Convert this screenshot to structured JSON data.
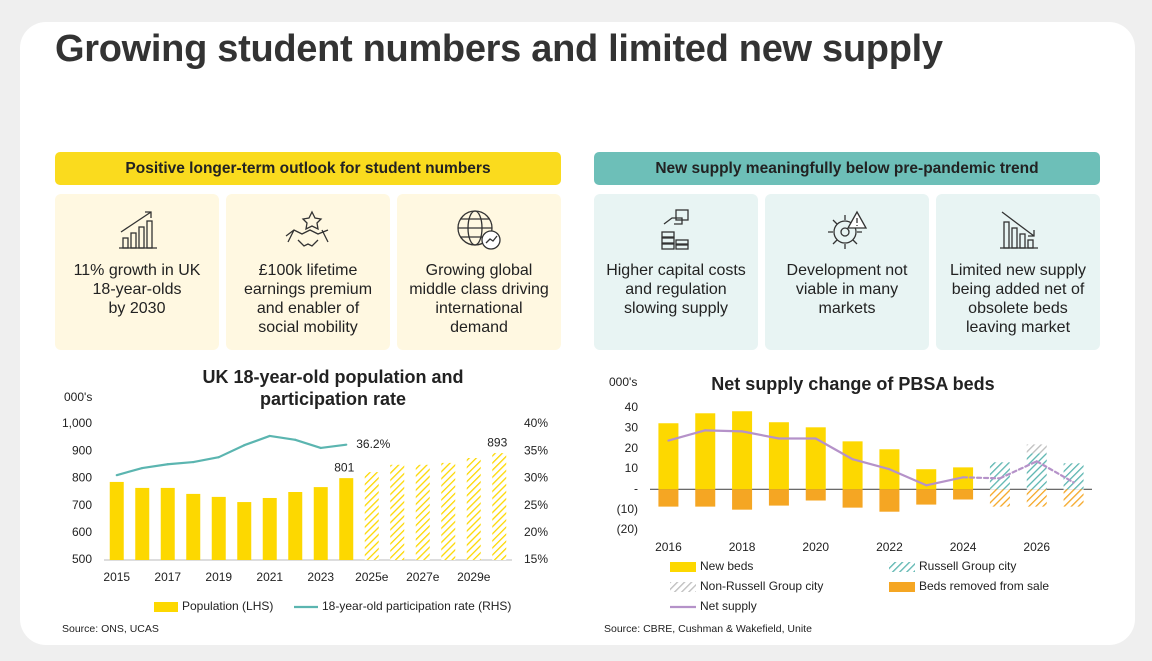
{
  "title": "Growing student numbers and limited new supply",
  "panels": [
    {
      "header": "Positive longer-term outlook for student numbers",
      "cards": [
        {
          "lines": [
            "11% growth in UK",
            "18-year-olds",
            "by 2030"
          ]
        },
        {
          "lines": [
            "£100k lifetime",
            "earnings premium",
            "and enabler of",
            "social mobility"
          ]
        },
        {
          "lines": [
            "Growing global",
            "middle class driving",
            "international",
            "demand"
          ]
        }
      ]
    },
    {
      "header": "New supply meaningfully below pre-pandemic trend",
      "cards": [
        {
          "lines": [
            "Higher capital costs",
            "and regulation",
            "slowing supply"
          ]
        },
        {
          "lines": [
            "Development not",
            "viable in many",
            "markets"
          ]
        },
        {
          "lines": [
            "Limited new supply",
            "being added net of",
            "obsolete beds",
            "leaving market"
          ]
        }
      ]
    }
  ],
  "chart_data": [
    {
      "type": "bar",
      "title": [
        "UK 18-year-old population and",
        "participation rate"
      ],
      "y_label": "000's",
      "categories": [
        "2015",
        null,
        "2017",
        null,
        "2019",
        null,
        "2021",
        null,
        "2023",
        null,
        "2025e",
        null,
        "2027e",
        null,
        "2029e",
        null
      ],
      "forecast": [
        false,
        false,
        false,
        false,
        false,
        false,
        false,
        false,
        false,
        false,
        true,
        true,
        true,
        true,
        true,
        true
      ],
      "series": [
        {
          "name": "Population (LHS)",
          "type": "bar",
          "color": "#FDD800",
          "values": [
            787,
            765,
            765,
            743,
            732,
            713,
            728,
            750,
            768,
            801,
            823,
            850,
            850,
            857,
            875,
            893
          ],
          "value_labels": [
            null,
            null,
            null,
            null,
            null,
            null,
            null,
            null,
            null,
            "801",
            null,
            null,
            null,
            null,
            null,
            "893"
          ]
        },
        {
          "name": "18-year-old participation rate (RHS)",
          "type": "line",
          "axis": "y2",
          "color": "#5BB5B0",
          "values": [
            30.6,
            31.9,
            32.6,
            33.0,
            33.9,
            36.1,
            37.8,
            37.1,
            35.6,
            36.2,
            null,
            null,
            null,
            null,
            null,
            null
          ],
          "value_labels": [
            null,
            null,
            null,
            null,
            null,
            null,
            null,
            null,
            null,
            "36.2%",
            null,
            null,
            null,
            null,
            null,
            null
          ]
        }
      ],
      "ylim": [
        500,
        1000
      ],
      "yticks": [
        500,
        600,
        700,
        800,
        900,
        {
          "value": 1000,
          "label": "1,000"
        }
      ],
      "y2lim": [
        15,
        40
      ],
      "y2ticks": [
        {
          "value": 15,
          "label": "15%"
        },
        {
          "value": 20,
          "label": "20%"
        },
        {
          "value": 25,
          "label": "25%"
        },
        {
          "value": 30,
          "label": "30%"
        },
        {
          "value": 35,
          "label": "35%"
        },
        {
          "value": 40,
          "label": "40%"
        }
      ],
      "source": "Source: ONS, UCAS"
    },
    {
      "type": "bar",
      "title": [
        "Net supply change of PBSA beds"
      ],
      "y_label": "000's",
      "categories": [
        "2016",
        null,
        "2018",
        null,
        "2020",
        null,
        "2022",
        null,
        "2024",
        null,
        "2026",
        null
      ],
      "forecast": [
        false,
        false,
        false,
        false,
        false,
        false,
        false,
        false,
        false,
        true,
        true,
        true
      ],
      "series": [
        {
          "name": "New beds",
          "type": "bar",
          "color": "#FDD800",
          "values": [
            32.5,
            37.4,
            38.4,
            33,
            30.5,
            23.6,
            19.7,
            9.9,
            10.8,
            null,
            null,
            null
          ]
        },
        {
          "name": "Russell Group city",
          "type": "bar",
          "color": "#5BB5B0",
          "values": [
            null,
            null,
            null,
            null,
            null,
            null,
            null,
            null,
            null,
            13.3,
            17.7,
            12.8
          ]
        },
        {
          "name": "Non-Russell Group city",
          "type": "bar",
          "color": "#BDBDBD",
          "values": [
            null,
            null,
            null,
            null,
            null,
            null,
            null,
            null,
            null,
            null,
            4.4,
            null
          ]
        },
        {
          "name": "Beds removed from sale",
          "type": "bar",
          "color": "#F5A623",
          "values": [
            -8.5,
            -8.5,
            -10,
            -8,
            -5.5,
            -9,
            -11,
            -7.5,
            -5,
            -8.5,
            -8.5,
            -8.5
          ]
        },
        {
          "name": "Net supply",
          "type": "line",
          "color": "#B592C9",
          "values": [
            24,
            29,
            28.5,
            25,
            25,
            14.8,
            9.9,
            2,
            5.9,
            5.4,
            13.8,
            3.4
          ]
        }
      ],
      "ylim": [
        -20,
        40
      ],
      "yticks": [
        40,
        30,
        20,
        10,
        {
          "value": 0,
          "label": "-"
        },
        {
          "value": -10,
          "label": "(10)"
        },
        {
          "value": -20,
          "label": "(20)"
        }
      ],
      "source": "Source: CBRE, Cushman & Wakefield, Unite"
    }
  ]
}
